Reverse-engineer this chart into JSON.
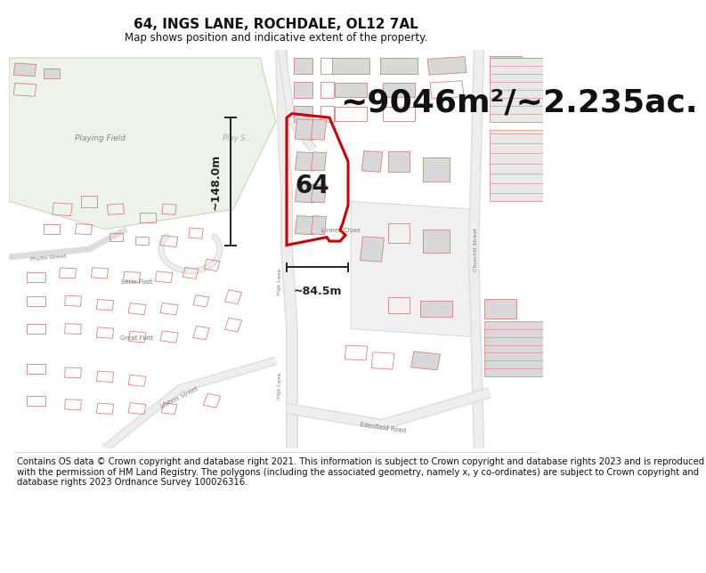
{
  "title": "64, INGS LANE, ROCHDALE, OL12 7AL",
  "subtitle": "Map shows position and indicative extent of the property.",
  "area_text": "~9046m²/~2.235ac.",
  "label_64": "64",
  "dim_vertical": "~148.0m",
  "dim_horizontal": "~84.5m",
  "footer": "Contains OS data © Crown copyright and database right 2021. This information is subject to Crown copyright and database rights 2023 and is reproduced with the permission of HM Land Registry. The polygons (including the associated geometry, namely x, y co-ordinates) are subject to Crown copyright and database rights 2023 Ordnance Survey 100026316.",
  "bg_color": "#ffffff",
  "title_fontsize": 11,
  "subtitle_fontsize": 8.5,
  "area_fontsize": 26,
  "label_fontsize": 20,
  "footer_fontsize": 7.2,
  "map_bg": "#ffffff",
  "playing_field_color": "#edf3e8",
  "road_color": "#e8e8e8",
  "building_fill": "#d8d8d8",
  "building_edge": "#b8b8b8",
  "pink_edge": "#d4827a",
  "red_line": "#cc0000",
  "dim_color": "#222222",
  "label_color": "#555555",
  "text_color": "#333333"
}
